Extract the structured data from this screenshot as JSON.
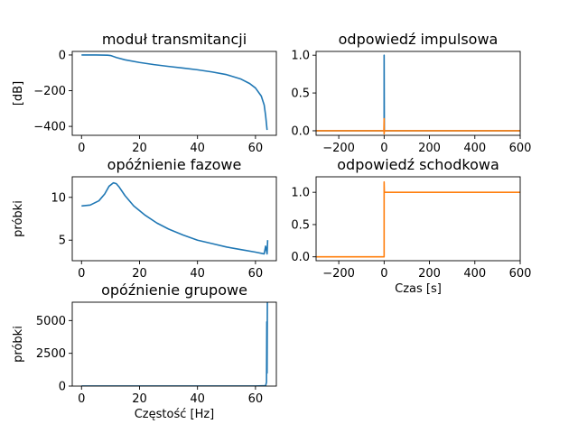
{
  "chart_data": [
    {
      "id": "magnitude",
      "type": "line",
      "title": "moduł transmitancji",
      "xlabel": "",
      "ylabel": "[dB]",
      "xlim": [
        -3.2,
        67.2
      ],
      "ylim": [
        -450,
        20
      ],
      "xticks": [
        0,
        20,
        40,
        60
      ],
      "yticks": [
        0,
        -200,
        -400
      ],
      "series": [
        {
          "color": "#1f77b4",
          "x": [
            0,
            5,
            9,
            10,
            12,
            15,
            20,
            25,
            30,
            35,
            40,
            45,
            50,
            55,
            58,
            60,
            62,
            63,
            63.5,
            64
          ],
          "y": [
            0,
            0,
            -1,
            -3,
            -14,
            -27,
            -42,
            -54,
            -64,
            -73,
            -83,
            -95,
            -110,
            -135,
            -160,
            -185,
            -230,
            -280,
            -340,
            -420
          ]
        }
      ]
    },
    {
      "id": "impulse",
      "type": "line",
      "title": "odpowiedź impulsowa",
      "xlabel": "",
      "ylabel": "",
      "xlim": [
        -300,
        600
      ],
      "ylim": [
        -0.06,
        1.05
      ],
      "xticks": [
        -200,
        0,
        200,
        400,
        600
      ],
      "yticks": [
        0.0,
        0.5,
        1.0
      ],
      "series": [
        {
          "color": "#1f77b4",
          "x": [
            -300,
            -1,
            0,
            0,
            1,
            600
          ],
          "y": [
            0,
            0,
            0,
            1.0,
            0,
            0
          ]
        },
        {
          "color": "#ff7f0e",
          "x": [
            -300,
            -1,
            0,
            0,
            1,
            600
          ],
          "y": [
            0,
            0,
            0.16,
            -0.04,
            0,
            0
          ]
        }
      ]
    },
    {
      "id": "phase-delay",
      "type": "line",
      "title": "opóźnienie fazowe",
      "xlabel": "",
      "ylabel": "próbki",
      "xlim": [
        -3.2,
        67.2
      ],
      "ylim": [
        2.6,
        12.4
      ],
      "xticks": [
        0,
        20,
        40,
        60
      ],
      "yticks": [
        5,
        10
      ],
      "series": [
        {
          "color": "#1f77b4",
          "x": [
            0,
            3,
            6,
            8,
            9.5,
            11,
            12,
            13,
            15,
            18,
            22,
            26,
            30,
            35,
            40,
            45,
            50,
            55,
            60,
            63,
            63.5,
            64,
            64.2
          ],
          "y": [
            9.0,
            9.1,
            9.6,
            10.4,
            11.3,
            11.7,
            11.6,
            11.2,
            10.2,
            9.0,
            7.9,
            7.0,
            6.3,
            5.6,
            5.0,
            4.6,
            4.2,
            3.9,
            3.6,
            3.4,
            4.3,
            3.4,
            5.0
          ]
        }
      ]
    },
    {
      "id": "step",
      "type": "line",
      "title": "odpowiedź schodkowa",
      "xlabel": "Czas [s]",
      "ylabel": "",
      "xlim": [
        -300,
        600
      ],
      "ylim": [
        -0.06,
        1.24
      ],
      "xticks": [
        -200,
        0,
        200,
        400,
        600
      ],
      "yticks": [
        0.0,
        0.5,
        1.0
      ],
      "series": [
        {
          "color": "#ff7f0e",
          "x": [
            -300,
            -1,
            0,
            0,
            1,
            2,
            600
          ],
          "y": [
            0,
            0,
            0,
            1.16,
            1.0,
            1.0,
            1.0
          ]
        }
      ]
    },
    {
      "id": "group-delay",
      "type": "line",
      "title": "opóźnienie grupowe",
      "xlabel": "Częstość [Hz]",
      "ylabel": "próbki",
      "xlim": [
        -3.2,
        67.2
      ],
      "ylim": [
        0,
        6400
      ],
      "xticks": [
        0,
        20,
        40,
        60
      ],
      "yticks": [
        0,
        2500,
        5000
      ],
      "series": [
        {
          "color": "#1f77b4",
          "x": [
            0,
            20,
            40,
            60,
            63.5,
            63.8,
            63.9,
            64.0,
            64.1
          ],
          "y": [
            9,
            9,
            9,
            9,
            30,
            300,
            4900,
            1000,
            6400
          ]
        }
      ]
    }
  ]
}
